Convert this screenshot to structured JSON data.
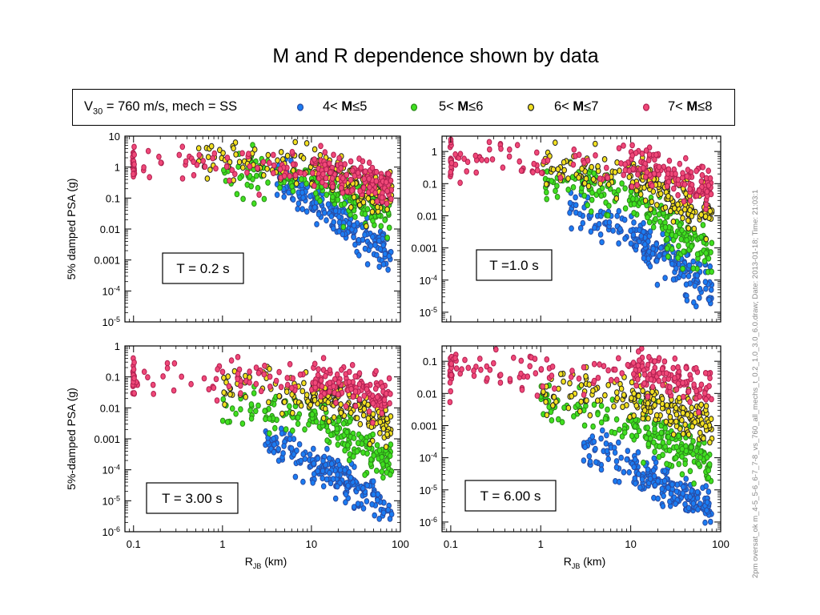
{
  "title": "M and R dependence shown by data",
  "legend": {
    "condition_prefix": "V",
    "condition_sub": "30",
    "condition_rest": " = 760 m/s, mech = SS",
    "items": [
      {
        "pre": "4< ",
        "bold": "M",
        "post": "≤5",
        "color": "#1a7cf2",
        "edge": "#2a4aa0"
      },
      {
        "pre": "5< ",
        "bold": "M",
        "post": "≤6",
        "color": "#40e020",
        "edge": "#2a8a18"
      },
      {
        "pre": "6< ",
        "bold": "M",
        "post": "≤7",
        "color": "#f2e020",
        "edge": "#222222"
      },
      {
        "pre": "7< ",
        "bold": "M",
        "post": "≤8",
        "color": "#f04878",
        "edge": "#b02050"
      }
    ]
  },
  "side_note": "2pm oversat_ok m_4-5_5-6_6-7_7-8_vs_760_all_mechs_t_0.2_1.0_3.0_6.0.draw; Date: 2013-01-18; Time: 21:03:1",
  "chart_data": [
    {
      "type": "scatter",
      "panel_label": "T = 0.2 s",
      "ylabel": "5% damped PSA (g)",
      "xlabel": "",
      "xscale": "log",
      "yscale": "log",
      "xlim": [
        0.08,
        100
      ],
      "ylim": [
        1e-05,
        10
      ],
      "x_ticks": [
        "0.1",
        "1",
        "10",
        "100"
      ],
      "y_ticks": [
        "10",
        "1",
        "0.1",
        "0.01",
        "0.001",
        "10-4",
        "10-5"
      ],
      "grid": false,
      "series": [
        {
          "name": "4< M≤5",
          "center": [
            [
              4,
              0.6
            ],
            [
              10,
              0.08
            ],
            [
              30,
              0.01
            ],
            [
              80,
              0.0015
            ]
          ]
        },
        {
          "name": "5< M≤6",
          "center": [
            [
              1,
              0.5
            ],
            [
              10,
              0.4
            ],
            [
              30,
              0.1
            ],
            [
              80,
              0.03
            ]
          ]
        },
        {
          "name": "6< M≤7",
          "center": [
            [
              0.5,
              1.5
            ],
            [
              10,
              1.0
            ],
            [
              30,
              0.3
            ],
            [
              80,
              0.15
            ]
          ]
        },
        {
          "name": "7< M≤8",
          "center": [
            [
              0.1,
              1.2
            ],
            [
              10,
              1.0
            ],
            [
              30,
              0.5
            ],
            [
              80,
              0.25
            ]
          ]
        }
      ]
    },
    {
      "type": "scatter",
      "panel_label": "T =1.0 s",
      "ylabel": "",
      "xlabel": "",
      "xscale": "log",
      "yscale": "log",
      "xlim": [
        0.08,
        100
      ],
      "ylim": [
        5e-06,
        3
      ],
      "x_ticks": [
        "0.1",
        "1",
        "10",
        "100"
      ],
      "y_ticks": [
        "1",
        "0.1",
        "0.01",
        "0.001",
        "10-4",
        "10-5"
      ],
      "grid": false,
      "series": [
        {
          "name": "4< M≤5",
          "center": [
            [
              2,
              0.02
            ],
            [
              10,
              0.003
            ],
            [
              30,
              0.0003
            ],
            [
              80,
              5e-05
            ]
          ]
        },
        {
          "name": "5< M≤6",
          "center": [
            [
              1,
              0.1
            ],
            [
              10,
              0.05
            ],
            [
              30,
              0.003
            ],
            [
              80,
              0.0005
            ]
          ]
        },
        {
          "name": "6< M≤7",
          "center": [
            [
              1,
              0.3
            ],
            [
              10,
              0.2
            ],
            [
              30,
              0.03
            ],
            [
              80,
              0.01
            ]
          ]
        },
        {
          "name": "7< M≤8",
          "center": [
            [
              0.1,
              0.6
            ],
            [
              10,
              0.4
            ],
            [
              30,
              0.2
            ],
            [
              80,
              0.05
            ]
          ]
        }
      ]
    },
    {
      "type": "scatter",
      "panel_label": "T = 3.00 s",
      "ylabel": "5%-damped PSA (g)",
      "xlabel": "R_JB (km)",
      "xscale": "log",
      "yscale": "log",
      "xlim": [
        0.08,
        100
      ],
      "ylim": [
        1e-06,
        1
      ],
      "x_ticks": [
        "0.1",
        "1",
        "10",
        "100"
      ],
      "y_ticks": [
        "1",
        "0.1",
        "0.01",
        "0.001",
        "10-4",
        "10-5",
        "10-6"
      ],
      "grid": false,
      "series": [
        {
          "name": "4< M≤5",
          "center": [
            [
              3,
              0.001
            ],
            [
              10,
              0.0002
            ],
            [
              30,
              3e-05
            ],
            [
              80,
              5e-06
            ]
          ]
        },
        {
          "name": "5< M≤6",
          "center": [
            [
              1,
              0.01
            ],
            [
              10,
              0.005
            ],
            [
              30,
              0.001
            ],
            [
              80,
              0.0002
            ]
          ]
        },
        {
          "name": "6< M≤7",
          "center": [
            [
              1,
              0.05
            ],
            [
              10,
              0.03
            ],
            [
              30,
              0.01
            ],
            [
              80,
              0.003
            ]
          ]
        },
        {
          "name": "7< M≤8",
          "center": [
            [
              0.1,
              0.1
            ],
            [
              10,
              0.08
            ],
            [
              30,
              0.05
            ],
            [
              80,
              0.02
            ]
          ]
        }
      ]
    },
    {
      "type": "scatter",
      "panel_label": "T = 6.00 s",
      "ylabel": "",
      "xlabel": "R_JB (km)",
      "xscale": "log",
      "yscale": "log",
      "xlim": [
        0.08,
        100
      ],
      "ylim": [
        5e-07,
        0.3
      ],
      "x_ticks": [
        "0.1",
        "1",
        "10",
        "100"
      ],
      "y_ticks": [
        "0.1",
        "0.01",
        "0.001",
        "10-4",
        "10-5",
        "10-6"
      ],
      "grid": false,
      "series": [
        {
          "name": "4< M≤5",
          "center": [
            [
              3,
              0.0002
            ],
            [
              10,
              5e-05
            ],
            [
              30,
              1e-05
            ],
            [
              80,
              3e-06
            ]
          ]
        },
        {
          "name": "5< M≤6",
          "center": [
            [
              1,
              0.005
            ],
            [
              10,
              0.001
            ],
            [
              30,
              0.0003
            ],
            [
              80,
              5e-05
            ]
          ]
        },
        {
          "name": "6< M≤7",
          "center": [
            [
              1,
              0.01
            ],
            [
              10,
              0.01
            ],
            [
              30,
              0.003
            ],
            [
              80,
              0.001
            ]
          ]
        },
        {
          "name": "7< M≤8",
          "center": [
            [
              0.1,
              0.05
            ],
            [
              10,
              0.05
            ],
            [
              30,
              0.03
            ],
            [
              80,
              0.01
            ]
          ]
        }
      ]
    }
  ]
}
